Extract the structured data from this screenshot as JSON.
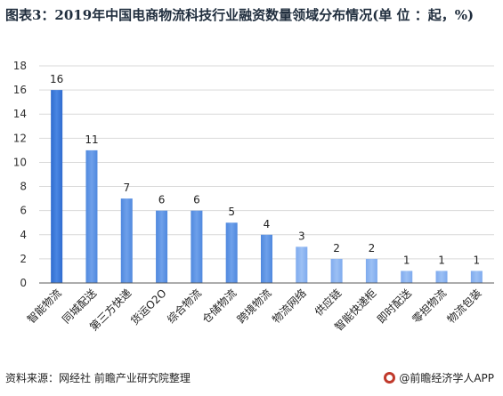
{
  "title": "图表3：2019年中国电商物流科技行业融资数量领域分布情况(单 位 ：起，%)",
  "footer": {
    "source": "资料来源：网经社 前瞻产业研究院整理",
    "brand": "@前瞻经济学人APP"
  },
  "colors": {
    "bar_dark": "#3b78d8",
    "bar_mid": "#5b93e6",
    "bar_light": "#8ab4f1",
    "grid": "#d9d9d9",
    "axis": "#595959"
  },
  "chart_data": {
    "type": "bar",
    "categories": [
      "智能物流",
      "同城配送",
      "第三方快递",
      "货运O2O",
      "综合物流",
      "仓储物流",
      "跨境物流",
      "物流网络",
      "供应链",
      "智能快递柜",
      "即时配送",
      "零担物流",
      "物流包装"
    ],
    "values": [
      16,
      11,
      7,
      6,
      6,
      5,
      4,
      3,
      2,
      2,
      1,
      1,
      1
    ],
    "ylim": [
      0,
      18
    ],
    "yticks": [
      0,
      2,
      4,
      6,
      8,
      10,
      12,
      14,
      16,
      18
    ],
    "grid": true,
    "legend": "none",
    "xlabel": "",
    "ylabel": ""
  }
}
